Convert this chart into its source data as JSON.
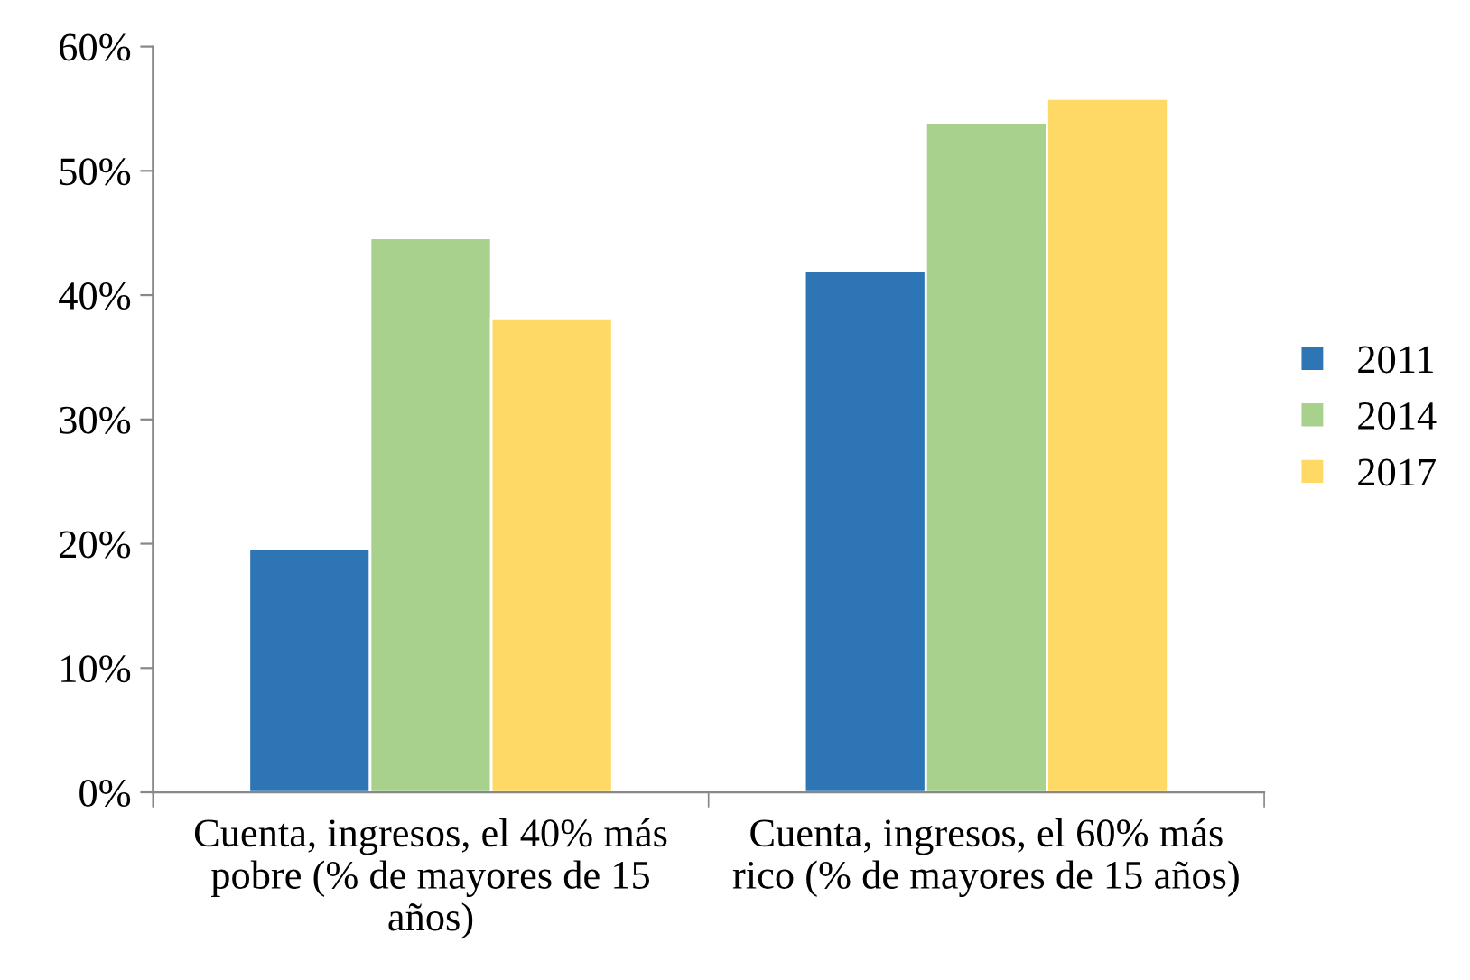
{
  "chart_data": {
    "type": "bar",
    "categories": [
      "Cuenta, ingresos, el 40% más pobre (% de mayores de 15 años)",
      "Cuenta, ingresos, el 60% más rico (% de mayores de 15 años)"
    ],
    "series": [
      {
        "name": "2011",
        "color": "#2e75b6",
        "values": [
          19.6,
          42.0
        ]
      },
      {
        "name": "2014",
        "color": "#a9d18e",
        "values": [
          44.6,
          53.9
        ]
      },
      {
        "name": "2017",
        "color": "#ffd966",
        "values": [
          38.1,
          55.8
        ]
      }
    ],
    "ylim": [
      0,
      60
    ],
    "yticks": [
      {
        "value": 0,
        "label": "0%"
      },
      {
        "value": 10,
        "label": "10%"
      },
      {
        "value": 20,
        "label": "20%"
      },
      {
        "value": 30,
        "label": "30%"
      },
      {
        "value": 40,
        "label": "40%"
      },
      {
        "value": 50,
        "label": "50%"
      },
      {
        "value": 60,
        "label": "60%"
      }
    ],
    "grid": false,
    "legend": "right"
  }
}
